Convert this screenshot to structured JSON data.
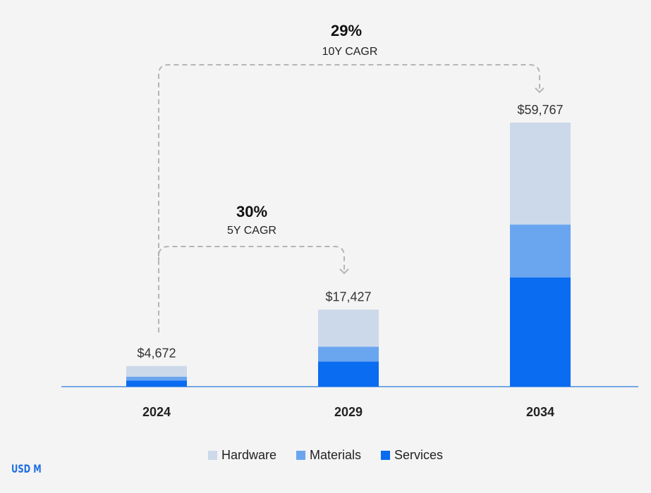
{
  "chart_data": {
    "type": "bar",
    "stacked": true,
    "categories": [
      "2024",
      "2029",
      "2034"
    ],
    "totals": [
      4672,
      17427,
      59767
    ],
    "total_labels": [
      "$4,672",
      "$17,427",
      "$59,767"
    ],
    "series": [
      {
        "name": "Services",
        "color": "#0a6cf0",
        "values": [
          1400,
          5700,
          24700
        ]
      },
      {
        "name": "Materials",
        "color": "#6aa5f0",
        "values": [
          850,
          3350,
          12000
        ]
      },
      {
        "name": "Hardware",
        "color": "#ccd9ea",
        "values": [
          2422,
          8377,
          23067
        ]
      }
    ],
    "legend_order": [
      "Hardware",
      "Materials",
      "Services"
    ],
    "legend_placement": "bottom",
    "annotations": [
      {
        "value": "30%",
        "label": "5Y CAGR",
        "from": "2024",
        "to": "2029"
      },
      {
        "value": "29%",
        "label": "10Y CAGR",
        "from": "2024",
        "to": "2034"
      }
    ],
    "unit": "USD M",
    "grid": false
  },
  "colors": {
    "background": "#f4f4f4",
    "baseline": "#4b90e0",
    "arrow": "#b5b5b5"
  }
}
